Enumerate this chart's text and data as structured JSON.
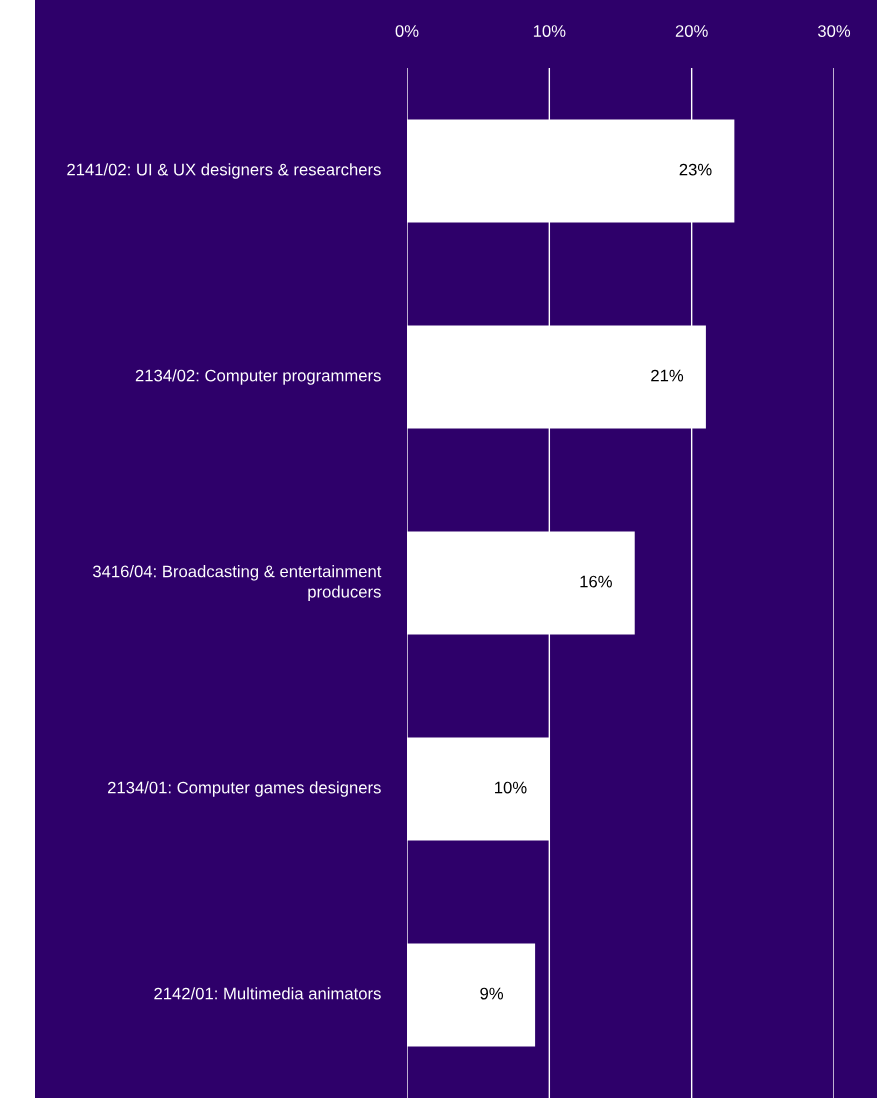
{
  "chart_data": {
    "type": "bar",
    "orientation": "horizontal",
    "categories": [
      "2141/02: UI & UX designers & researchers",
      "2134/02: Computer programmers",
      "3416/04: Broadcasting & entertainment producers",
      "2134/01: Computer games designers",
      "2142/01: Multimedia animators"
    ],
    "values": [
      23,
      21,
      16,
      10,
      9
    ],
    "color": "#ffffff",
    "xlim": [
      0,
      30
    ],
    "xticks": [
      {
        "value": 0,
        "label": "0%"
      },
      {
        "value": 10,
        "label": "10%"
      },
      {
        "value": 20,
        "label": "20%"
      },
      {
        "value": 30,
        "label": "30%"
      }
    ],
    "grid": "x",
    "value_labels": [
      "23%",
      "21%",
      "16%",
      "10%",
      "9%"
    ]
  }
}
